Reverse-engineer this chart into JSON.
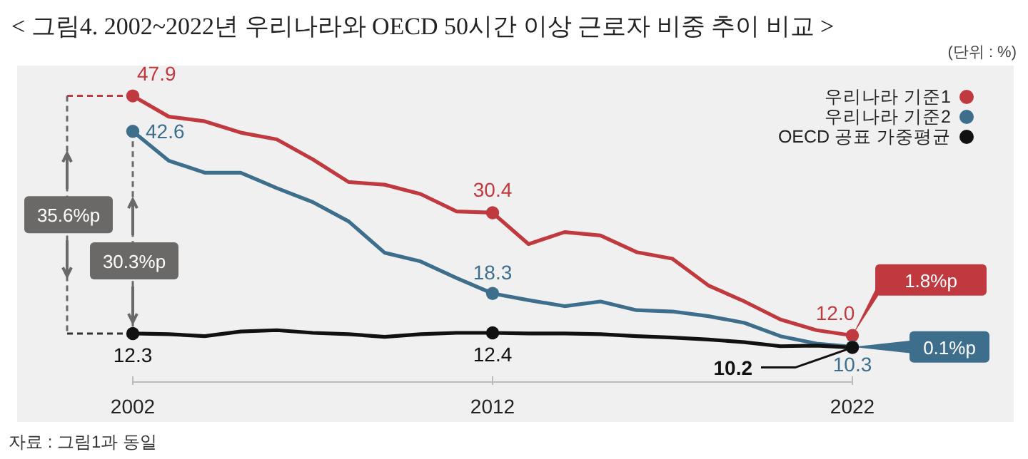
{
  "chart_data": {
    "type": "line",
    "title": "< 그림4. 2002~2022년 우리나라와 OECD 50시간 이상 근로자 비중 추이 비교 >",
    "subtitle": "(단위 : %)",
    "x": [
      2002,
      2003,
      2004,
      2005,
      2006,
      2007,
      2008,
      2009,
      2010,
      2011,
      2012,
      2013,
      2014,
      2015,
      2016,
      2017,
      2018,
      2019,
      2020,
      2021,
      2022
    ],
    "xlim": [
      2002,
      2022
    ],
    "xticks": [
      2002,
      2012,
      2022
    ],
    "grid": false,
    "legend": "top right",
    "line_style": "solid",
    "series": [
      {
        "name": "우리나라 기준1",
        "color": "#c0393f",
        "values": [
          47.9,
          44.8,
          44.1,
          42.4,
          41.4,
          38.4,
          35.0,
          34.6,
          33.2,
          30.6,
          30.4,
          25.7,
          27.5,
          27.0,
          24.5,
          23.5,
          19.5,
          17.1,
          14.4,
          12.8,
          12.0
        ],
        "value_labels": [
          "47.9",
          null,
          null,
          null,
          null,
          null,
          null,
          null,
          null,
          null,
          "30.4",
          null,
          null,
          null,
          null,
          null,
          null,
          null,
          null,
          null,
          "12.0"
        ]
      },
      {
        "name": "우리나라 기준2",
        "color": "#3d6e8c",
        "values": [
          42.6,
          38.2,
          36.4,
          36.4,
          34.1,
          32.0,
          29.1,
          24.4,
          23.1,
          20.6,
          18.3,
          17.3,
          16.4,
          17.1,
          15.8,
          15.6,
          14.9,
          13.9,
          11.9,
          10.8,
          10.3
        ],
        "value_labels": [
          "42.6",
          null,
          null,
          null,
          null,
          null,
          null,
          null,
          null,
          null,
          "18.3",
          null,
          null,
          null,
          null,
          null,
          null,
          null,
          null,
          null,
          "10.3"
        ]
      },
      {
        "name": "OECD 공표 가중평균",
        "color": "#111111",
        "values": [
          12.3,
          12.2,
          11.9,
          12.6,
          12.8,
          12.4,
          12.2,
          11.8,
          12.2,
          12.4,
          12.4,
          12.3,
          12.3,
          12.2,
          11.9,
          11.7,
          11.4,
          11.0,
          10.4,
          10.5,
          10.2
        ],
        "value_labels": [
          "12.3",
          null,
          null,
          null,
          null,
          null,
          null,
          null,
          null,
          null,
          "12.4",
          null,
          null,
          null,
          null,
          null,
          null,
          null,
          null,
          null,
          "10.2"
        ]
      }
    ],
    "annotations": [
      "35.6%p",
      "30.3%p",
      "1.8%p",
      "0.1%p",
      "자료 : 그림1과 동일"
    ]
  }
}
